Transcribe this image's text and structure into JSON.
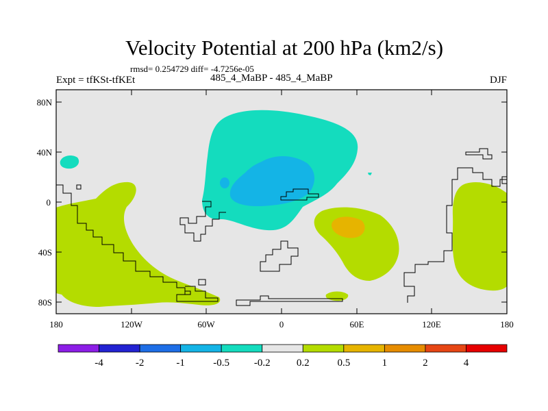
{
  "header": {
    "title": "Velocity Potential at 200 hPa (km2/s)",
    "stats": "rmsd= 0.254729 diff= -4.7256e-05",
    "expt": "Expt = tfKSt-tfKEt",
    "case": "485_4_MaBP - 485_4_MaBP",
    "season": "DJF"
  },
  "axes": {
    "lat_labels": [
      "80N",
      "40N",
      "0",
      "40S",
      "80S"
    ],
    "lon_labels": [
      "180",
      "120W",
      "60W",
      "0",
      "60E",
      "120E",
      "180"
    ]
  },
  "colorbar": {
    "colors": [
      "#8c1ee6",
      "#2323d2",
      "#1e6ee6",
      "#14b4e6",
      "#14dcbe",
      "#e6e6e6",
      "#b4dc00",
      "#e6b400",
      "#e68c00",
      "#e64614",
      "#e60000"
    ],
    "labels": [
      "-4",
      "-2",
      "-1",
      "-0.5",
      "-0.2",
      "0.2",
      "0.5",
      "1",
      "2",
      "4"
    ]
  },
  "colors": {
    "background": "#e6e6e6",
    "weak_negative": "#14dcbe",
    "moderate_negative": "#14b4e6",
    "weak_positive": "#b4dc00",
    "moderate_positive": "#e6b400"
  }
}
